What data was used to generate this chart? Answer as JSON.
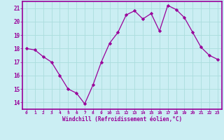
{
  "x": [
    0,
    1,
    2,
    3,
    4,
    5,
    6,
    7,
    8,
    9,
    10,
    11,
    12,
    13,
    14,
    15,
    16,
    17,
    18,
    19,
    20,
    21,
    22,
    23
  ],
  "y": [
    18.0,
    17.9,
    17.4,
    17.0,
    16.0,
    15.0,
    14.7,
    13.9,
    15.3,
    17.0,
    18.4,
    19.2,
    20.5,
    20.8,
    20.2,
    20.6,
    19.3,
    21.2,
    20.9,
    20.3,
    19.2,
    18.1,
    17.5,
    17.2
  ],
  "line_color": "#990099",
  "marker": "D",
  "marker_size": 2.2,
  "bg_color": "#cbeef3",
  "grid_color": "#aadddd",
  "xlabel": "Windchill (Refroidissement éolien,°C)",
  "xlabel_color": "#990099",
  "tick_color": "#990099",
  "ylim": [
    13.5,
    21.5
  ],
  "xlim": [
    -0.5,
    23.5
  ],
  "yticks": [
    14,
    15,
    16,
    17,
    18,
    19,
    20,
    21
  ],
  "xticks": [
    0,
    1,
    2,
    3,
    4,
    5,
    6,
    7,
    8,
    9,
    10,
    11,
    12,
    13,
    14,
    15,
    16,
    17,
    18,
    19,
    20,
    21,
    22,
    23
  ],
  "spine_color": "#990099",
  "border_color": "#990099"
}
